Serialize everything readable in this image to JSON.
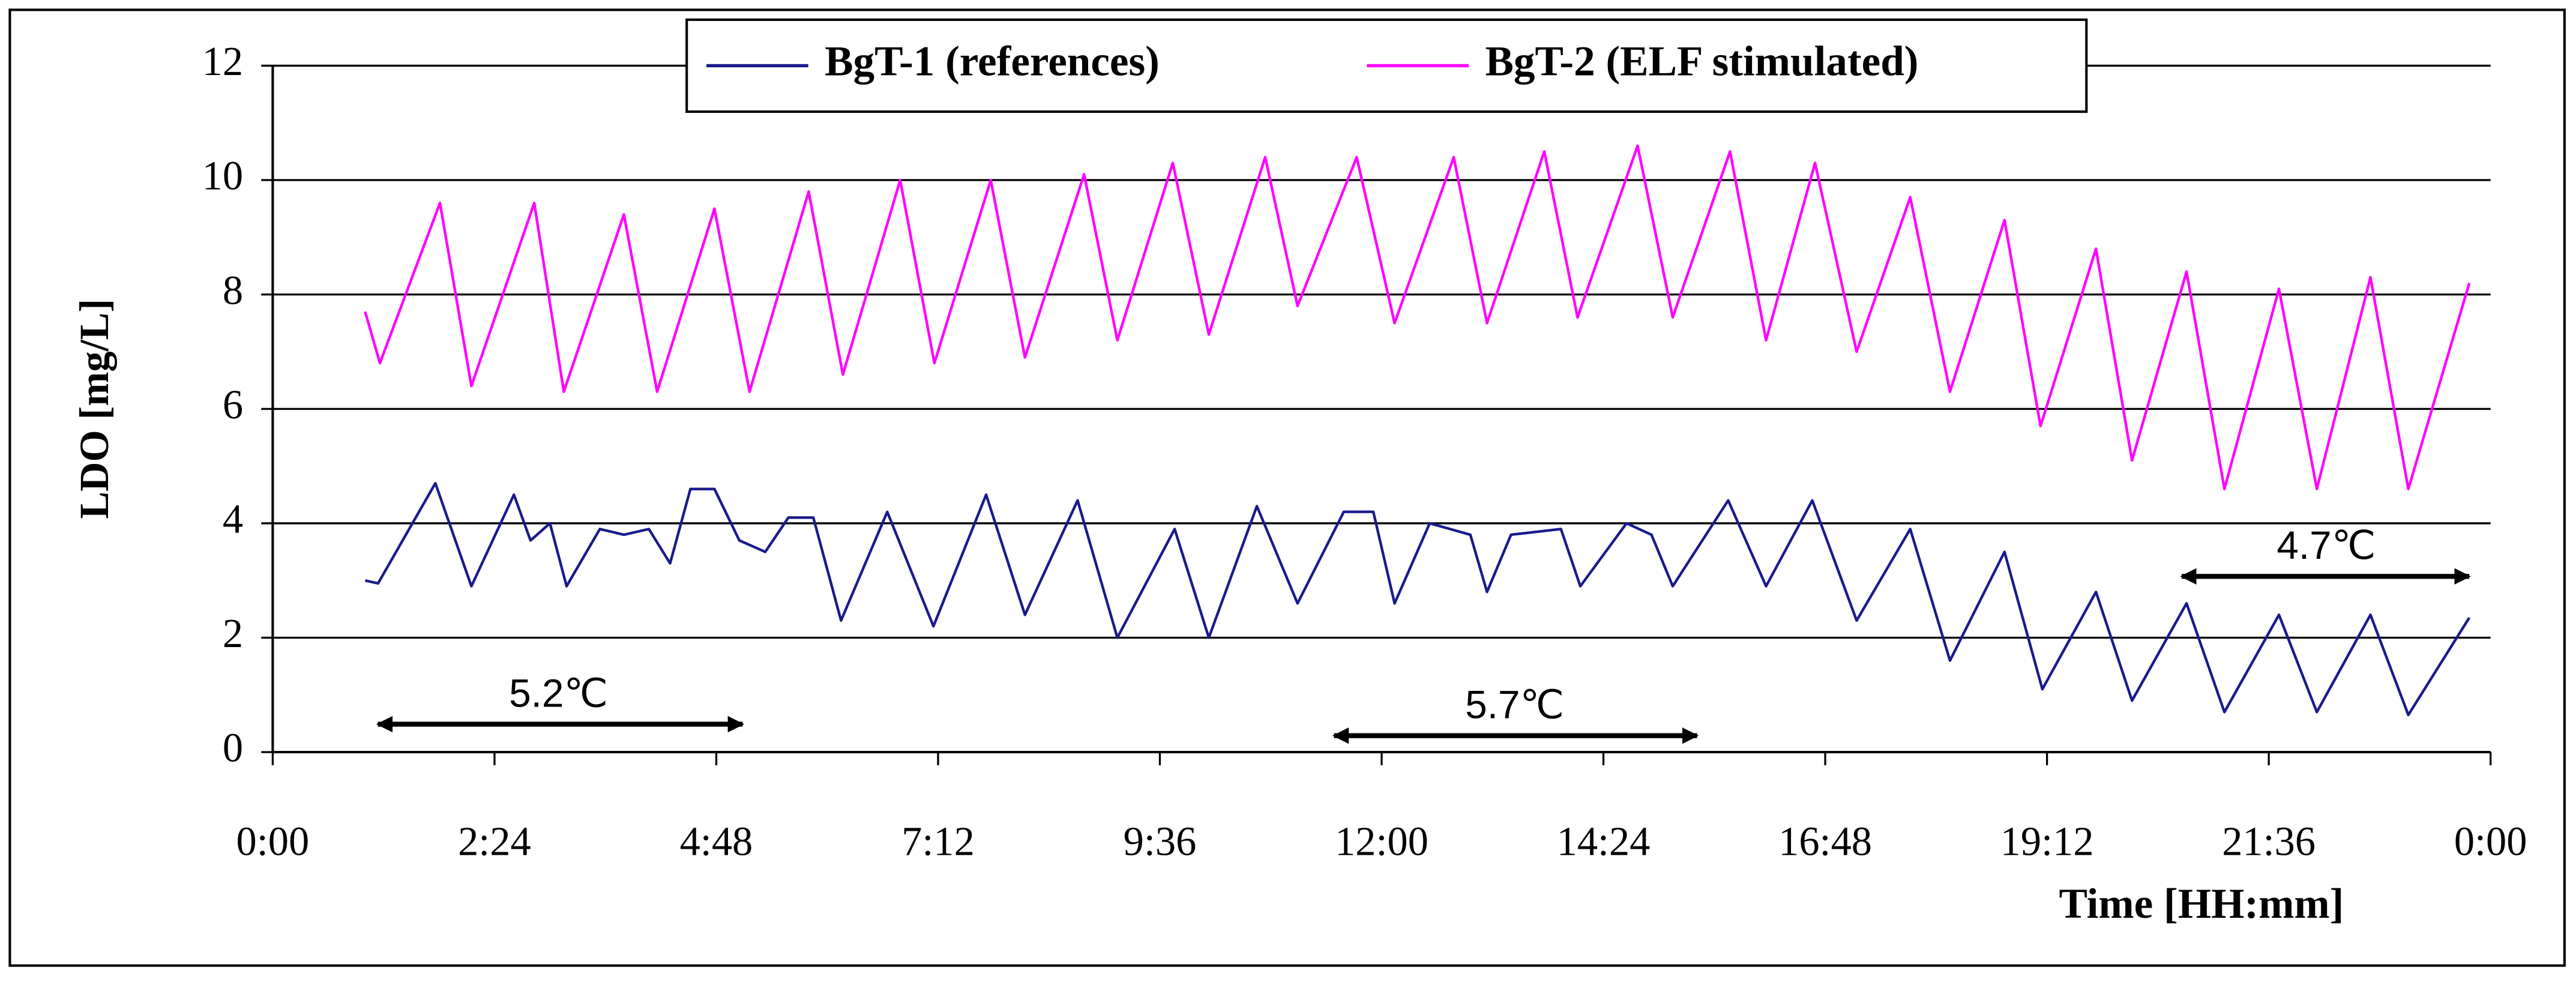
{
  "chart_data": {
    "type": "line",
    "y_label": "LDO [mg/L]",
    "x_label": "Time [HH:mm]",
    "xlim": [
      0,
      24
    ],
    "xticks": [
      {
        "value": 0,
        "label": "0:00"
      },
      {
        "value": 2.4,
        "label": "2:24"
      },
      {
        "value": 4.8,
        "label": "4:48"
      },
      {
        "value": 7.2,
        "label": "7:12"
      },
      {
        "value": 9.6,
        "label": "9:36"
      },
      {
        "value": 12,
        "label": "12:00"
      },
      {
        "value": 14.4,
        "label": "14:24"
      },
      {
        "value": 16.8,
        "label": "16:48"
      },
      {
        "value": 19.2,
        "label": "19:12"
      },
      {
        "value": 21.6,
        "label": "21:36"
      },
      {
        "value": 24,
        "label": "0:00"
      }
    ],
    "ylim": [
      0,
      12
    ],
    "yticks": [
      0,
      2,
      4,
      6,
      8,
      10,
      12
    ],
    "grid": true,
    "legend": "upper center",
    "annotations": [
      "5.2℃",
      "5.7℃",
      "4.7℃"
    ],
    "series": [
      {
        "name": "BgT-1 (references)",
        "color": "#1a1a8c",
        "x": [
          1.0,
          1.14,
          1.76,
          2.15,
          2.61,
          2.79,
          3.0,
          3.18,
          3.54,
          3.8,
          4.07,
          4.3,
          4.52,
          4.78,
          5.05,
          5.33,
          5.58,
          5.85,
          6.15,
          6.65,
          7.15,
          7.72,
          8.14,
          8.71,
          9.14,
          9.76,
          10.13,
          10.65,
          11.09,
          11.59,
          11.91,
          12.14,
          12.52,
          12.96,
          13.14,
          13.4,
          13.94,
          14.15,
          14.65,
          14.92,
          15.15,
          15.75,
          16.16,
          16.66,
          17.14,
          17.72,
          18.15,
          18.74,
          19.15,
          19.73,
          20.12,
          20.71,
          21.12,
          21.71,
          22.12,
          22.7,
          23.11,
          23.77
        ],
        "values": [
          3.0,
          2.95,
          4.7,
          2.9,
          4.5,
          3.7,
          4.0,
          2.9,
          3.9,
          3.8,
          3.9,
          3.3,
          4.6,
          4.6,
          3.7,
          3.5,
          4.1,
          4.1,
          2.3,
          4.2,
          2.2,
          4.5,
          2.4,
          4.4,
          2.0,
          3.9,
          2.0,
          4.3,
          2.6,
          4.2,
          4.2,
          2.6,
          4.0,
          3.8,
          2.8,
          3.8,
          3.9,
          2.9,
          4.0,
          3.8,
          2.9,
          4.4,
          2.9,
          4.4,
          2.3,
          3.9,
          1.6,
          3.5,
          1.1,
          2.8,
          0.9,
          2.6,
          0.7,
          2.4,
          0.7,
          2.4,
          0.65,
          2.35
        ]
      },
      {
        "name": "BgT-2 (ELF stimulated)",
        "color": "#ff00ff",
        "x": [
          1.0,
          1.16,
          1.81,
          2.15,
          2.83,
          3.15,
          3.8,
          4.16,
          4.78,
          5.16,
          5.8,
          6.17,
          6.79,
          7.16,
          7.77,
          8.14,
          8.78,
          9.14,
          9.74,
          10.13,
          10.74,
          11.09,
          11.73,
          12.14,
          12.78,
          13.14,
          13.76,
          14.12,
          14.77,
          15.15,
          15.77,
          16.16,
          16.69,
          17.14,
          17.72,
          18.15,
          18.74,
          19.13,
          19.73,
          20.12,
          20.71,
          21.12,
          21.71,
          22.12,
          22.7,
          23.11,
          23.77
        ],
        "values": [
          7.7,
          6.8,
          9.6,
          6.4,
          9.6,
          6.3,
          9.4,
          6.3,
          9.5,
          6.3,
          9.8,
          6.6,
          10.0,
          6.8,
          10.0,
          6.9,
          10.1,
          7.2,
          10.3,
          7.3,
          10.4,
          7.8,
          10.4,
          7.5,
          10.4,
          7.5,
          10.5,
          7.6,
          10.6,
          7.6,
          10.5,
          7.2,
          10.3,
          7.0,
          9.7,
          6.3,
          9.3,
          5.7,
          8.8,
          5.1,
          8.4,
          4.6,
          8.1,
          4.6,
          8.3,
          4.6,
          8.2
        ]
      }
    ]
  }
}
